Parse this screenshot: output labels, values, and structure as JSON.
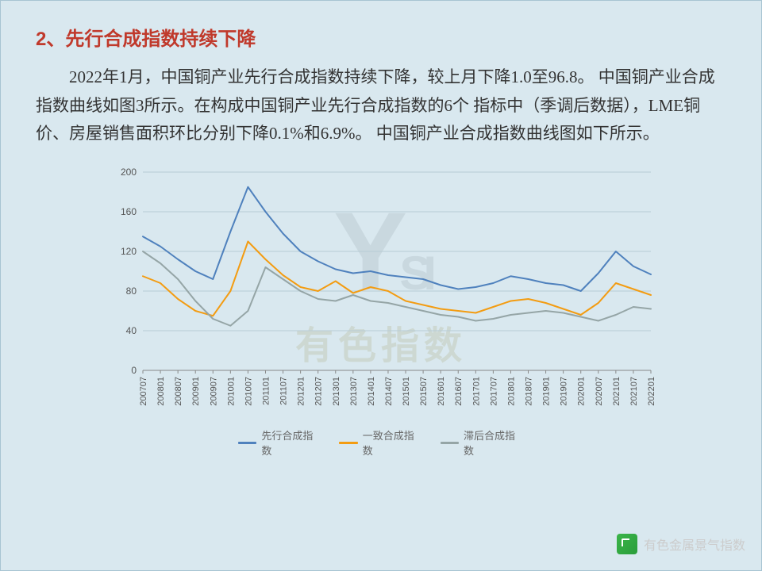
{
  "heading": "2、先行合成指数持续下降",
  "body_line1": "2022年1月，中国铜产业先行合成指数持续下降，较上月下降1.0至96.8。",
  "body_line2": "中国铜产业合成指数曲线如图3所示。在构成中国铜产业先行合成指数的6个",
  "body_line3": "指标中（季调后数据），LME铜价、房屋销售面积环比分别下降0.1%和6.9%。",
  "body_line4": "中国铜产业合成指数曲线图如下所示。",
  "source_label": "有色金属景气指数",
  "watermark": {
    "big": "Y",
    "si": "SI",
    "cn": "有色指数"
  },
  "chart": {
    "type": "line",
    "ylim": [
      0,
      200
    ],
    "ytick_step": 40,
    "y_ticks": [
      0,
      40,
      80,
      120,
      160,
      200
    ],
    "x_labels": [
      "200707",
      "200801",
      "200807",
      "200901",
      "200907",
      "201001",
      "201007",
      "201101",
      "201107",
      "201201",
      "201207",
      "201301",
      "201307",
      "201401",
      "201407",
      "201501",
      "201507",
      "201601",
      "201607",
      "201701",
      "201707",
      "201801",
      "201807",
      "201901",
      "201907",
      "202001",
      "202007",
      "202101",
      "202107",
      "202201"
    ],
    "series": [
      {
        "name": "先行合成指数",
        "color": "#4f81bd",
        "width": 2,
        "values": [
          135,
          125,
          112,
          100,
          92,
          140,
          185,
          160,
          138,
          120,
          110,
          102,
          98,
          100,
          96,
          94,
          92,
          86,
          82,
          84,
          88,
          95,
          92,
          88,
          86,
          80,
          98,
          120,
          105,
          96.8
        ]
      },
      {
        "name": "一致合成指数",
        "color": "#f39c12",
        "width": 2,
        "values": [
          95,
          88,
          72,
          60,
          55,
          80,
          130,
          112,
          96,
          84,
          80,
          90,
          78,
          84,
          80,
          70,
          66,
          62,
          60,
          58,
          64,
          70,
          72,
          68,
          62,
          56,
          68,
          88,
          82,
          76
        ]
      },
      {
        "name": "滞后合成指数",
        "color": "#95a5a6",
        "width": 2,
        "values": [
          120,
          108,
          92,
          70,
          52,
          45,
          60,
          104,
          92,
          80,
          72,
          70,
          76,
          70,
          68,
          64,
          60,
          56,
          54,
          50,
          52,
          56,
          58,
          60,
          58,
          54,
          50,
          56,
          64,
          62
        ]
      }
    ],
    "grid_color": "#b8cdd6",
    "axis_color": "#888",
    "background": "transparent",
    "label_fontsize": 12
  }
}
